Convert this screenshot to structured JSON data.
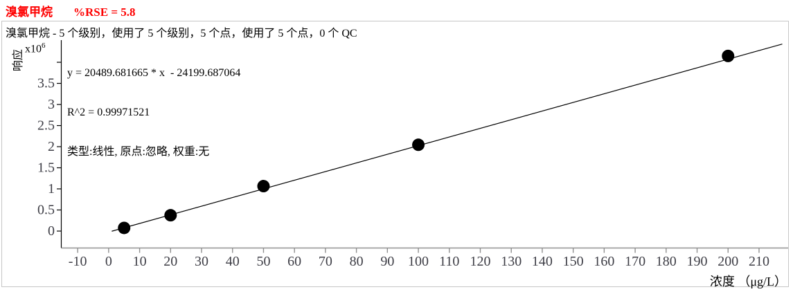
{
  "header": {
    "analyte": "溴氯甲烷",
    "rse": "%RSE = 5.8"
  },
  "subtitle": "溴氯甲烷 - 5 个级别，使用了 5 个级别，5 个点，使用了 5 个点，0 个 QC",
  "equation_block": {
    "line1": "y = 20489.681665 * x  - 24199.687064",
    "line2": "R^2 = 0.99971521",
    "line3": "类型:线性, 原点:忽略, 权重:无"
  },
  "axes": {
    "y_title": "响应",
    "y_scale_base": "x10",
    "y_scale_exp": "6",
    "x_title": "浓度 （μg/L）"
  },
  "chart_data": {
    "type": "scatter",
    "title": "溴氯甲烷 %RSE = 5.8",
    "subtitle": "溴氯甲烷 - 5 个级别，使用了 5 个级别，5 个点，使用了 5 个点，0 个 QC",
    "xlabel": "浓度 （μg/L）",
    "ylabel": "响应 (x10^6)",
    "x_ticks": [
      -10,
      0,
      10,
      20,
      30,
      40,
      50,
      60,
      70,
      80,
      90,
      100,
      110,
      120,
      130,
      140,
      150,
      160,
      170,
      180,
      190,
      200,
      210
    ],
    "y_ticks": [
      0,
      0.5,
      1,
      1.5,
      2,
      2.5,
      3,
      3.5,
      4
    ],
    "y_tick_labels": [
      "0",
      "0.5",
      "1",
      "1.5",
      "2",
      "2.5",
      "3",
      "3.5",
      ""
    ],
    "y_unit_scale": 1000000,
    "xlim": [
      -15.4,
      219.4
    ],
    "ylim": [
      -393000,
      4525000
    ],
    "grid": false,
    "legend": null,
    "points": [
      {
        "conc": 5,
        "response": 75000
      },
      {
        "conc": 20,
        "response": 375000
      },
      {
        "conc": 50,
        "response": 1065000
      },
      {
        "conc": 100,
        "response": 2045000
      },
      {
        "conc": 200,
        "response": 4150000
      }
    ],
    "fit": {
      "type": "线性",
      "origin": "忽略",
      "weight": "无",
      "slope": 20489.681665,
      "intercept": -24199.687064,
      "r_squared": 0.99971521,
      "rse_percent": 5.8,
      "line_x_range": [
        1,
        217.5
      ]
    }
  }
}
